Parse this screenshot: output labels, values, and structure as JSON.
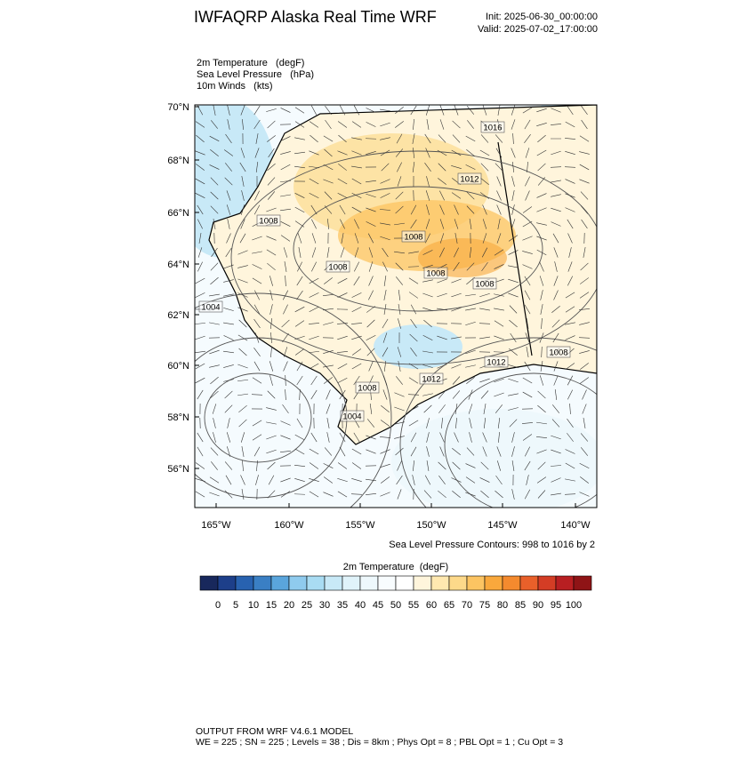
{
  "header": {
    "title": "IWFAQRP Alaska Real Time WRF",
    "init": "Init: 2025-06-30_00:00:00",
    "valid": "Valid: 2025-07-02_17:00:00"
  },
  "fields": [
    "2m Temperature   (degF)",
    "Sea Level Pressure   (hPa)",
    "10m Winds   (kts)"
  ],
  "map": {
    "lat_labels": [
      "70°N",
      "68°N",
      "66°N",
      "64°N",
      "62°N",
      "60°N",
      "58°N",
      "56°N"
    ],
    "lon_labels": [
      "165°W",
      "160°W",
      "155°W",
      "150°W",
      "145°W",
      "140°W"
    ],
    "contour_labels": [
      "1016",
      "1012",
      "1008",
      "1008",
      "1008",
      "1008",
      "1008",
      "1004",
      "1008",
      "1012",
      "1012",
      "1008",
      "1004"
    ],
    "contour_note": "Sea Level Pressure Contours: 998 to 1016 by 2"
  },
  "colorbar": {
    "title": "2m Temperature  (degF)",
    "ticks": [
      0,
      5,
      10,
      15,
      20,
      25,
      30,
      35,
      40,
      45,
      50,
      55,
      60,
      65,
      70,
      75,
      80,
      85,
      90,
      95,
      100
    ],
    "colors": [
      "#18285c",
      "#1d3f8a",
      "#2862b0",
      "#3a7fc4",
      "#5aa5dc",
      "#8fcbee",
      "#a9dcf3",
      "#c8e9f7",
      "#e0f3fa",
      "#eef8fc",
      "#f8fcfe",
      "#ffffff",
      "#fff5dc",
      "#ffe8b0",
      "#fdd98a",
      "#fcc462",
      "#f9a83c",
      "#f48a2e",
      "#e9602a",
      "#d43d25",
      "#b81f22",
      "#8f1416"
    ]
  },
  "footer": [
    "OUTPUT FROM WRF V4.6.1 MODEL",
    "WE = 225 ; SN = 225 ; Levels = 38 ; Dis = 8km ; Phys Opt = 8 ; PBL Opt = 1 ; Cu Opt = 3"
  ]
}
